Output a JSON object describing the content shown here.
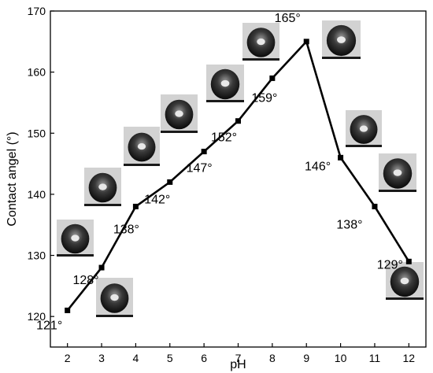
{
  "chart_data": {
    "type": "line",
    "xlabel": "pH",
    "ylabel": "Contact angel (°)",
    "xlim": [
      1.5,
      12.5
    ],
    "ylim": [
      115,
      170
    ],
    "xticks": [
      2,
      3,
      4,
      5,
      6,
      7,
      8,
      9,
      10,
      11,
      12
    ],
    "yticks": [
      120,
      130,
      140,
      150,
      160,
      170
    ],
    "grid": false,
    "series": [
      {
        "x": [
          2,
          3,
          4,
          5,
          6,
          7,
          8,
          9,
          10,
          11,
          12
        ],
        "y": [
          121,
          128,
          138,
          142,
          147,
          152,
          159,
          165,
          146,
          138,
          129
        ]
      }
    ],
    "data_labels": [
      "121°",
      "128°",
      "138°",
      "142°",
      "147°",
      "152°",
      "159°",
      "165°",
      "146°",
      "138°",
      "129°"
    ],
    "line_color": "#000000",
    "marker": "square",
    "inset_images": "water droplet photographs showing contact angle at each pH"
  }
}
